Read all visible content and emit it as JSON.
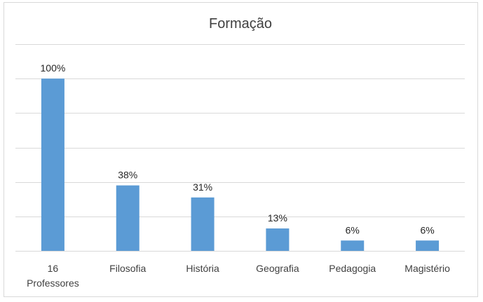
{
  "chart_data": {
    "type": "bar",
    "title": "Formação",
    "categories": [
      "16 Professores",
      "Filosofia",
      "História",
      "Geografia",
      "Pedagogia",
      "Magistério"
    ],
    "category_lines": [
      [
        "16",
        "Professores"
      ],
      [
        "Filosofia"
      ],
      [
        "História"
      ],
      [
        "Geografia"
      ],
      [
        "Pedagogia"
      ],
      [
        "Magistério"
      ]
    ],
    "values": [
      100,
      38,
      31,
      13,
      6,
      6
    ],
    "data_labels": [
      "100%",
      "38%",
      "31%",
      "13%",
      "6%",
      "6%"
    ],
    "ylim": [
      0,
      120
    ],
    "grid": true,
    "bar_color": "#5b9bd5",
    "grid_color": "#d9d9d9"
  }
}
